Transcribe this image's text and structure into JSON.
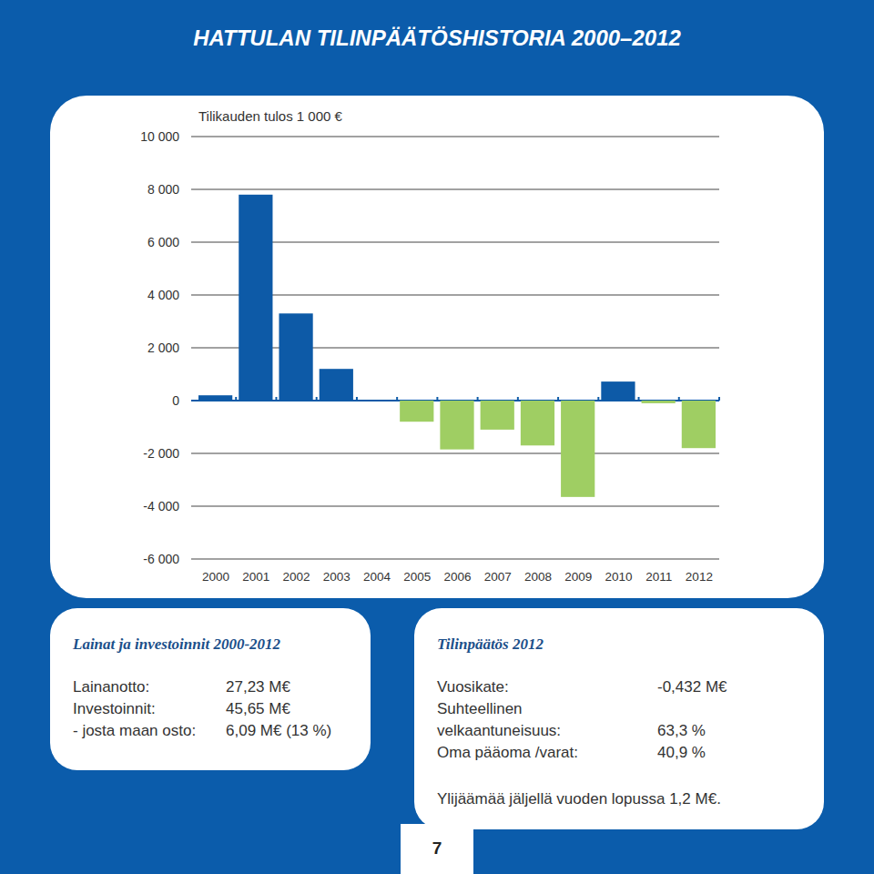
{
  "header": {
    "title": "HATTULAN TILINPÄÄTÖSHISTORIA 2000–2012"
  },
  "chart_data": {
    "type": "bar",
    "title": "Tilikauden tulos 1 000 €",
    "categories": [
      "2000",
      "2001",
      "2002",
      "2003",
      "2004",
      "2005",
      "2006",
      "2007",
      "2008",
      "2009",
      "2010",
      "2011",
      "2012"
    ],
    "values": [
      200,
      7800,
      3300,
      1200,
      20,
      -800,
      -1850,
      -1100,
      -1700,
      -3650,
      720,
      -100,
      -1800
    ],
    "colors": [
      "#0d5aa7",
      "#0d5aa7",
      "#0d5aa7",
      "#0d5aa7",
      "#0d5aa7",
      "#9fce63",
      "#9fce63",
      "#9fce63",
      "#9fce63",
      "#9fce63",
      "#0d5aa7",
      "#9fce63",
      "#9fce63"
    ],
    "ylim": [
      -6000,
      10000
    ],
    "yticks": [
      {
        "value": -6000,
        "label": "-6 000"
      },
      {
        "value": -4000,
        "label": "-4 000"
      },
      {
        "value": -2000,
        "label": "-2 000"
      },
      0,
      {
        "value": 2000,
        "label": "2 000"
      },
      {
        "value": 4000,
        "label": "4 000"
      },
      {
        "value": 6000,
        "label": "6 000"
      },
      {
        "value": 8000,
        "label": "8 000"
      },
      {
        "value": 10000,
        "label": "10 000"
      }
    ],
    "grid": true
  },
  "panels": {
    "loans": {
      "title": "Lainat ja investoinnit 2000-2012",
      "rows": [
        {
          "label": [
            "Lainanotto:"
          ],
          "value": "27,23 M€"
        },
        {
          "label": [
            "Investoinnit:"
          ],
          "value": "45,65 M€"
        },
        {
          "label": [
            "- josta maan osto:"
          ],
          "value": "6,09 M€  (13 %)"
        }
      ]
    },
    "statement": {
      "title": "Tilinpäätös 2012",
      "rows": [
        {
          "label": [
            "Vuosikate:"
          ],
          "value": "-0,432 M€"
        },
        {
          "label": [
            "Suhteellinen",
            "velkaantuneisuus:"
          ],
          "value": "63,3 %"
        },
        {
          "label": [
            "Oma pääoma /varat:"
          ],
          "value": "40,9 %"
        }
      ],
      "note": "Ylijäämää jäljellä vuoden lopussa 1,2 M€."
    }
  },
  "page_number": "7"
}
